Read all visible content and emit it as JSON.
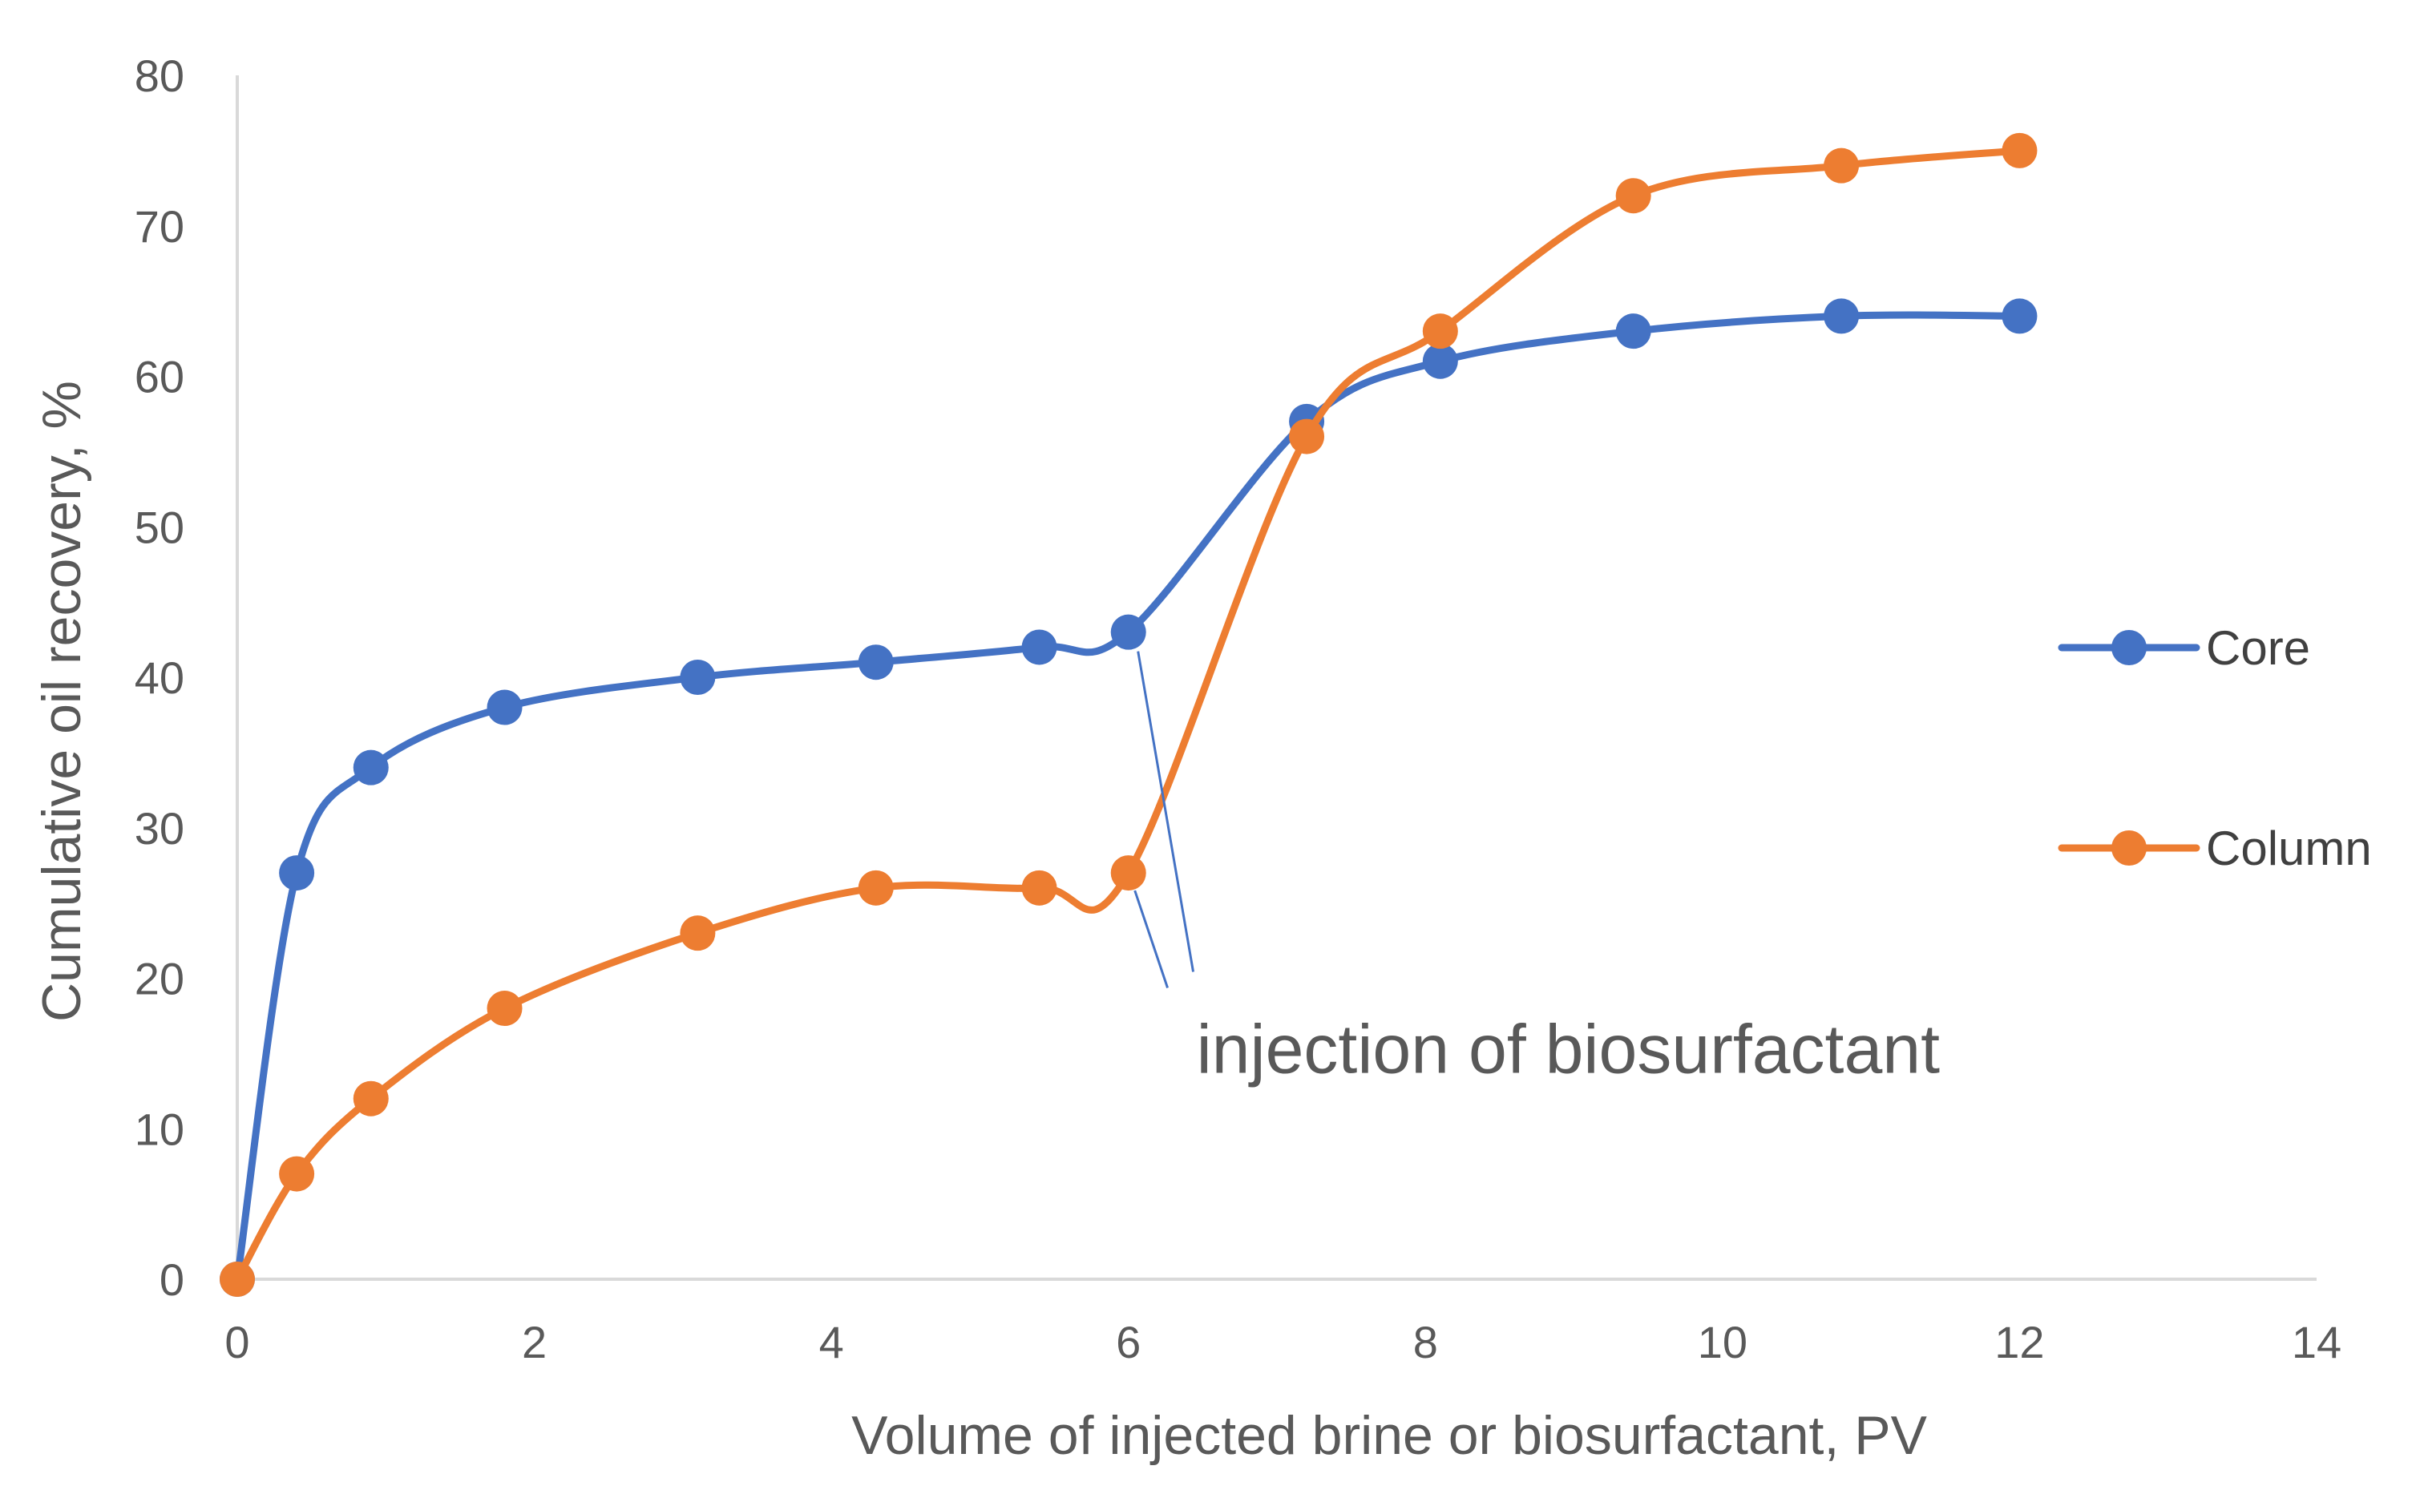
{
  "chart_data": {
    "type": "line",
    "title": "",
    "xlabel": "Volume of injected brine or biosurfactant, PV",
    "ylabel": "Cumulative oil recovery, %",
    "xlim": [
      0,
      14
    ],
    "ylim": [
      0,
      80
    ],
    "xticks": [
      0,
      2,
      4,
      6,
      8,
      10,
      12,
      14
    ],
    "yticks": [
      0,
      10,
      20,
      30,
      40,
      50,
      60,
      70,
      80
    ],
    "grid": false,
    "legend_position": "right",
    "smooth": true,
    "series": [
      {
        "name": "Core",
        "color": "#4472C4",
        "x": [
          0,
          0.4,
          0.9,
          1.8,
          3.1,
          4.3,
          5.4,
          6.0,
          7.2,
          8.1,
          9.4,
          10.8,
          12.0
        ],
        "y": [
          0,
          27,
          34,
          38,
          40,
          41,
          42,
          43,
          57,
          61,
          63,
          64,
          64
        ]
      },
      {
        "name": "Column",
        "color": "#ED7D31",
        "x": [
          0,
          0.4,
          0.9,
          1.8,
          3.1,
          4.3,
          5.4,
          6.0,
          7.2,
          8.1,
          9.4,
          10.8,
          12.0
        ],
        "y": [
          0,
          7,
          12,
          18,
          23,
          26,
          26,
          27,
          56,
          63,
          72,
          74,
          75
        ]
      }
    ],
    "annotations": [
      {
        "text": "injection of biosurfactant",
        "targets": [
          [
            6.0,
            43
          ],
          [
            6.0,
            27
          ]
        ],
        "label_anchor": [
          6.35,
          20
        ]
      }
    ]
  },
  "colors": {
    "axis": "#D9D9D9",
    "text": "#595959",
    "annotation_line": "#4472C4"
  }
}
